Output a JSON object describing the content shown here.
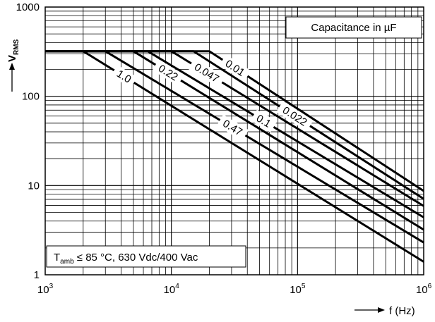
{
  "chart_data": {
    "type": "line",
    "x_scale": "log",
    "y_scale": "log",
    "xlim": [
      1000,
      1000000
    ],
    "ylim": [
      1,
      1000
    ],
    "grid": true,
    "title": "",
    "xlabel": "f (Hz)",
    "ylabel": "V",
    "ylabel_sub": "RMS",
    "x_ticks": [
      {
        "base": "10",
        "exp": "3"
      },
      {
        "base": "10",
        "exp": "4"
      },
      {
        "base": "10",
        "exp": "5"
      },
      {
        "base": "10",
        "exp": "6"
      }
    ],
    "y_ticks": [
      "1",
      "10",
      "100",
      "1000"
    ],
    "legend_box": "Capacitance in µF",
    "note": {
      "prefix": "T",
      "sub": "amb",
      "rest": " ≤ 85 °C, 630 Vdc/400 Vac"
    },
    "series": [
      {
        "name": "0.01",
        "points": [
          [
            1000,
            320
          ],
          [
            20000,
            320
          ],
          [
            1000000,
            8.7
          ]
        ]
      },
      {
        "name": "0.022",
        "points": [
          [
            1000,
            320
          ],
          [
            15000,
            320
          ],
          [
            1000000,
            7.1
          ]
        ]
      },
      {
        "name": "0.047",
        "points": [
          [
            1000,
            320
          ],
          [
            10000,
            320
          ],
          [
            1000000,
            5.9
          ]
        ]
      },
      {
        "name": "0.1",
        "points": [
          [
            1000,
            320
          ],
          [
            6500,
            320
          ],
          [
            1000000,
            4.4
          ]
        ]
      },
      {
        "name": "0.22",
        "points": [
          [
            1000,
            320
          ],
          [
            5000,
            320
          ],
          [
            1000000,
            3.2
          ]
        ]
      },
      {
        "name": "0.47",
        "points": [
          [
            1000,
            320
          ],
          [
            3000,
            320
          ],
          [
            1000000,
            2.3
          ]
        ]
      },
      {
        "name": "1.0",
        "points": [
          [
            1000,
            320
          ],
          [
            2000,
            320
          ],
          [
            1000000,
            1.4
          ]
        ]
      }
    ]
  }
}
